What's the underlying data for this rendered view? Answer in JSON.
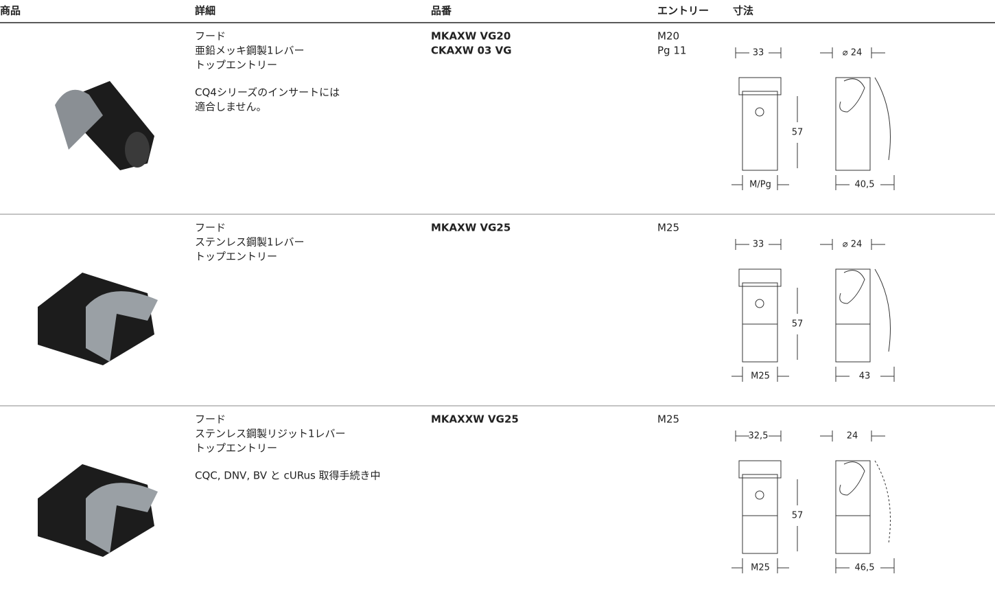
{
  "header": [
    "商品",
    "詳細",
    "品番",
    "エントリー",
    "寸法"
  ],
  "rows": [
    {
      "details": [
        "フード",
        "亜鉛メッキ鋼製1レバー",
        "トップエントリー"
      ],
      "note": [
        "CQ4シリーズのインサートには",
        "適合しません。"
      ],
      "part_numbers": [
        "MKAXW VG20",
        "CKAXW 03 VG"
      ],
      "entry": [
        "M20",
        "Pg 11"
      ],
      "dimensions": {
        "width": "33",
        "depth": "⌀ 24",
        "height": "57",
        "bottom": "M/Pg",
        "side": "40,5"
      }
    },
    {
      "details": [
        "フード",
        "ステンレス鋼製1レバー",
        "トップエントリー"
      ],
      "note": [],
      "part_numbers": [
        "MKAXW VG25"
      ],
      "entry": [
        "M25"
      ],
      "dimensions": {
        "width": "33",
        "depth": "⌀ 24",
        "height": "57",
        "bottom": "M25",
        "side": "43"
      }
    },
    {
      "details": [
        "フード",
        "ステンレス鋼製リジット1レバー",
        "トップエントリー"
      ],
      "note": [
        "CQC, DNV, BV と cURus 取得手続き中"
      ],
      "part_numbers": [
        "MKAXXW VG25"
      ],
      "entry": [
        "M25"
      ],
      "dimensions": {
        "width": "32,5",
        "depth": "24",
        "height": "57",
        "bottom": "M25",
        "side": "46,5"
      }
    }
  ]
}
